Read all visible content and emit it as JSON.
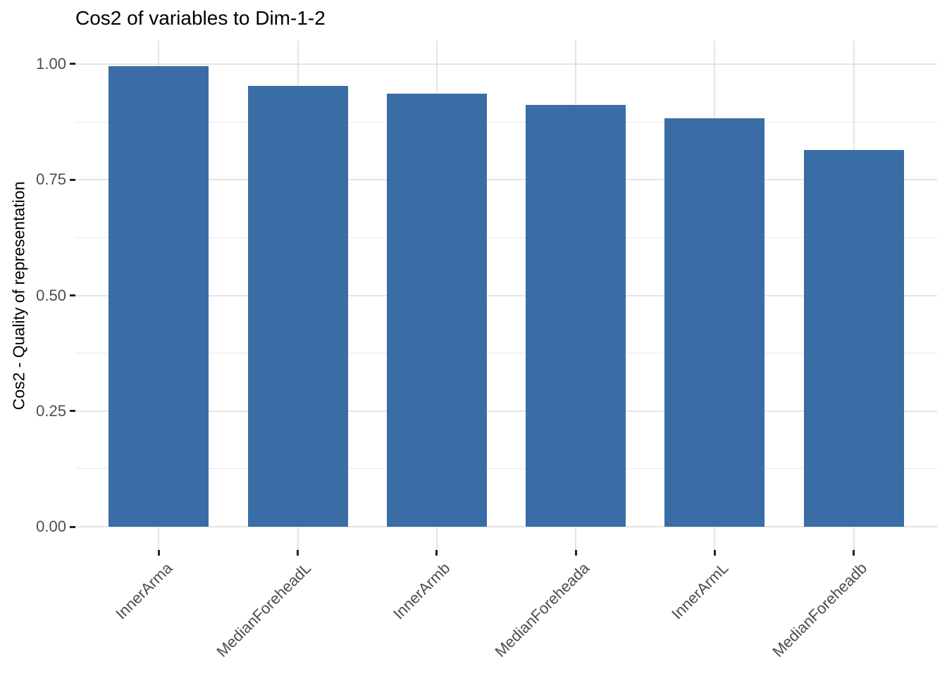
{
  "chart_data": {
    "type": "bar",
    "title": "Cos2 of variables to Dim-1-2",
    "xlabel": "",
    "ylabel": "Cos2 - Quality of representation",
    "categories": [
      "InnerArma",
      "MedianForeheadL",
      "InnerArmb",
      "MedianForeheada",
      "InnerArmL",
      "MedianForeheadb"
    ],
    "values": [
      0.995,
      0.953,
      0.936,
      0.911,
      0.882,
      0.814
    ],
    "ylim": [
      -0.05,
      1.05
    ],
    "yticks": [
      0,
      0.25,
      0.5,
      0.75,
      1.0
    ],
    "ytick_labels": [
      "0.00",
      "0.25",
      "0.50",
      "0.75",
      "1.00"
    ],
    "yticks_minor": [
      0.125,
      0.375,
      0.625,
      0.875
    ],
    "grid": true,
    "legend": "none",
    "bar_color": "#3a6da5",
    "x_label_rotation": 45
  }
}
